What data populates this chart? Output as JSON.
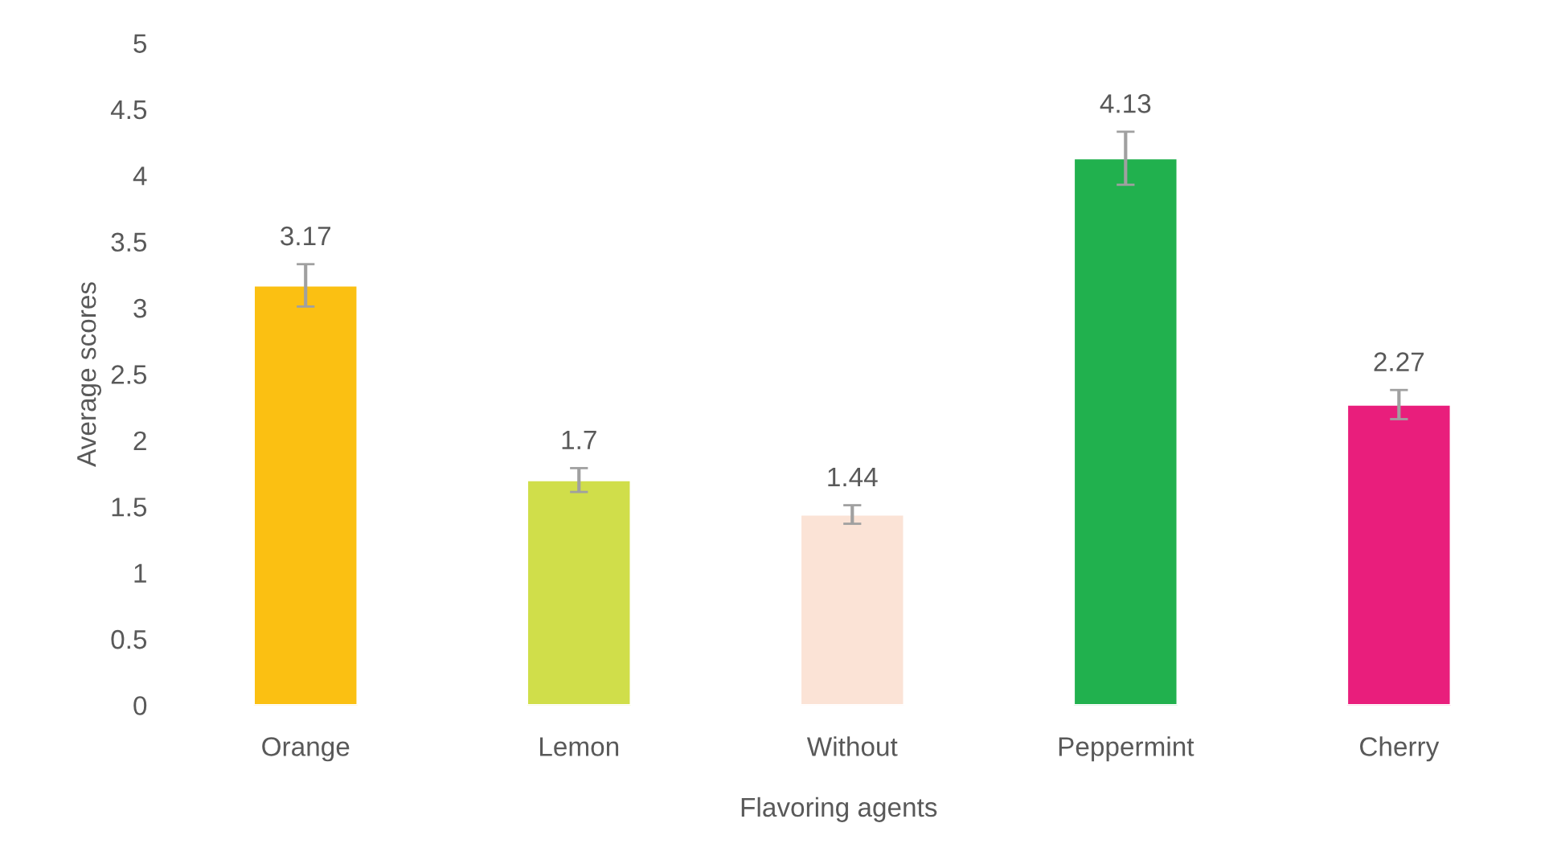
{
  "chart_data": {
    "type": "bar",
    "xlabel": "Flavoring agents",
    "ylabel": "Average scores",
    "categories": [
      "Orange",
      "Lemon",
      "Without",
      "Peppermint",
      "Cherry"
    ],
    "values": [
      3.17,
      1.7,
      1.44,
      4.13,
      2.27
    ],
    "colors": [
      "#fbc012",
      "#d0de4a",
      "#fbe3d6",
      "#21b14e",
      "#e91e7c"
    ],
    "errors": [
      0.16,
      0.09,
      0.07,
      0.2,
      0.11
    ],
    "ylim": [
      0,
      5
    ],
    "yticks": [
      0,
      0.5,
      1,
      1.5,
      2,
      2.5,
      3,
      3.5,
      4,
      4.5,
      5
    ],
    "data_labels": true,
    "grid": false,
    "legend": false
  }
}
